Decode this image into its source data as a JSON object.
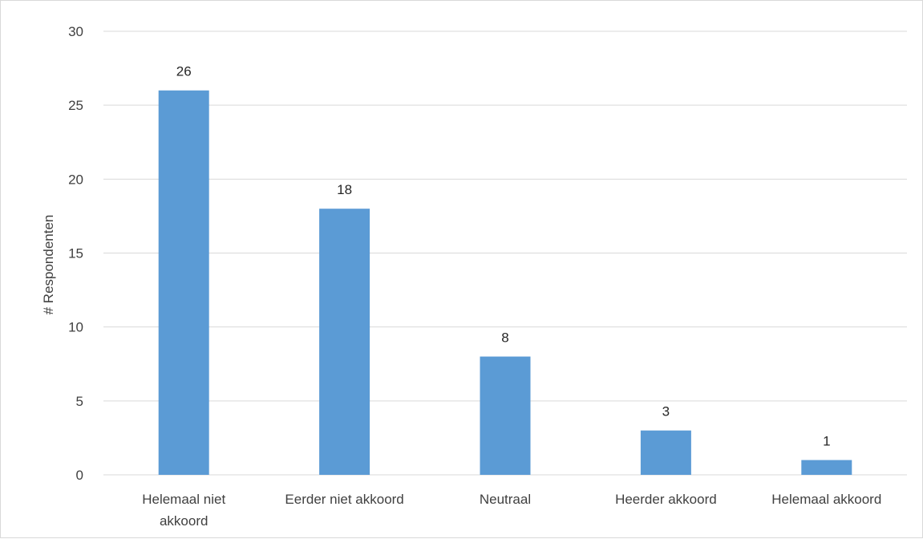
{
  "chart_data": {
    "type": "bar",
    "categories": [
      "Helemaal niet akkoord",
      "Eerder niet akkoord",
      "Neutraal",
      "Heerder akkoord",
      "Helemaal akkoord"
    ],
    "category_label_lines": [
      [
        "Helemaal niet",
        "akkoord"
      ],
      [
        "Eerder niet akkoord"
      ],
      [
        "Neutraal"
      ],
      [
        "Heerder akkoord"
      ],
      [
        "Helemaal akkoord"
      ]
    ],
    "values": [
      26,
      18,
      8,
      3,
      1
    ],
    "title": "",
    "xlabel": "",
    "ylabel": "# Respondenten",
    "ylim": [
      0,
      30
    ],
    "yticks": [
      0,
      5,
      10,
      15,
      20,
      25,
      30
    ],
    "grid": true,
    "legend": "none",
    "bar_color": "#5b9bd5",
    "gridline_color": "#d9d9d9",
    "data_labels": true
  }
}
